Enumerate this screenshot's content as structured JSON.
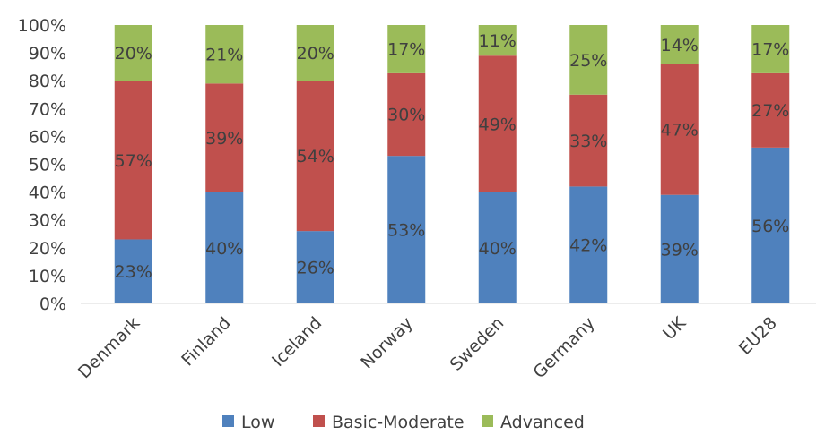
{
  "chart_data": {
    "type": "bar",
    "stacked": true,
    "categories": [
      "Denmark",
      "Finland",
      "Iceland",
      "Norway",
      "Sweden",
      "Germany",
      "UK",
      "EU28"
    ],
    "series": [
      {
        "name": "Low",
        "color": "#4F81BD",
        "values": [
          23,
          40,
          26,
          53,
          40,
          42,
          39,
          56
        ],
        "labels": [
          "23%",
          "40%",
          "26%",
          "53%",
          "40%",
          "42%",
          "39%",
          "56%"
        ]
      },
      {
        "name": "Basic-Moderate",
        "color": "#C0504D",
        "values": [
          57,
          39,
          54,
          30,
          49,
          33,
          47,
          27
        ],
        "labels": [
          "57%",
          "39%",
          "54%",
          "30%",
          "49%",
          "33%",
          "47%",
          "27%"
        ]
      },
      {
        "name": "Advanced",
        "color": "#9BBB59",
        "values": [
          20,
          21,
          20,
          17,
          11,
          25,
          14,
          17
        ],
        "labels": [
          "20%",
          "21%",
          "20%",
          "17%",
          "11%",
          "25%",
          "14%",
          "17%"
        ]
      }
    ],
    "yticks": [
      "0%",
      "10%",
      "20%",
      "30%",
      "40%",
      "50%",
      "60%",
      "70%",
      "80%",
      "90%",
      "100%"
    ],
    "ylim": [
      0,
      100
    ],
    "grid": false,
    "legend": "bottom"
  }
}
